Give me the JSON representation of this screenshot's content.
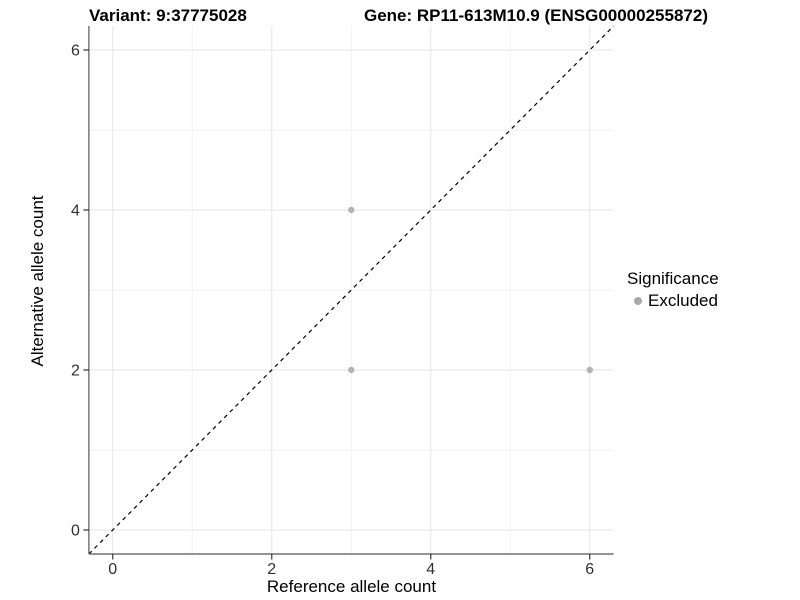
{
  "header": {
    "variant_title": "Variant: 9:37775028",
    "gene_title": "Gene: RP11-613M10.9 (ENSG00000255872)"
  },
  "chart_data": {
    "type": "scatter",
    "xlabel": "Reference allele count",
    "ylabel": "Alternative allele count",
    "xlim": [
      -0.3,
      6.3
    ],
    "ylim": [
      -0.3,
      6.3
    ],
    "xticks": [
      0,
      2,
      4,
      6
    ],
    "yticks": [
      0,
      2,
      4,
      6
    ],
    "xticks_minor": [
      1,
      3,
      5
    ],
    "yticks_minor": [
      1,
      3,
      5
    ],
    "grid": "major+minor",
    "identity_line": {
      "slope": 1,
      "intercept": 0,
      "style": "dashed",
      "color": "#000000"
    },
    "series": [
      {
        "name": "Excluded",
        "color": "#b3b3b3",
        "marker": "circle",
        "points": [
          [
            3,
            4
          ],
          [
            3,
            2
          ],
          [
            6,
            2
          ]
        ]
      }
    ],
    "legend": {
      "position": "right",
      "title": "Significance",
      "items": [
        {
          "label": "Excluded",
          "color": "#a8a8a8"
        }
      ]
    }
  },
  "style": {
    "grid_major_color": "#e6e6e6",
    "grid_minor_color": "#f2f2f2",
    "axis_line_color": "#555555",
    "tick_color": "#333333",
    "tick_label_color": "#303030",
    "point_radius": 3.2
  }
}
